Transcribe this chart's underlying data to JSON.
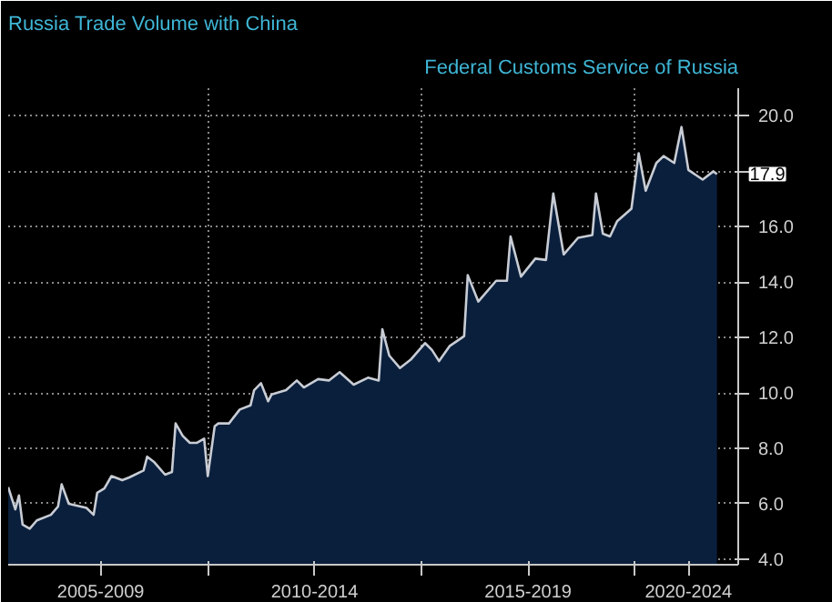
{
  "chart_data": {
    "type": "area",
    "title": "Russia Trade Volume with China",
    "annotations": [
      "Federal Customs Service of Russia",
      {
        "text": "17.9",
        "x": "2021-12",
        "y": 17.9
      }
    ],
    "x": [
      "2005-05",
      "2005-07",
      "2005-08",
      "2005-09",
      "2005-11",
      "2006-01",
      "2006-05",
      "2006-07",
      "2006-08",
      "2006-10",
      "2007-03",
      "2007-05",
      "2007-06",
      "2007-08",
      "2007-10",
      "2008-01",
      "2008-03",
      "2008-07",
      "2008-08",
      "2008-10",
      "2009-01",
      "2009-03",
      "2009-04",
      "2009-06",
      "2009-08",
      "2009-10",
      "2009-12",
      "2010-01",
      "2010-03",
      "2010-04",
      "2010-07",
      "2010-10",
      "2011-01",
      "2011-02",
      "2011-04",
      "2011-06",
      "2011-07",
      "2011-11",
      "2012-02",
      "2012-04",
      "2012-08",
      "2012-11",
      "2013-02",
      "2013-06",
      "2013-10",
      "2014-01",
      "2014-02",
      "2014-04",
      "2014-07",
      "2014-10",
      "2015-02",
      "2015-04",
      "2015-06",
      "2015-09",
      "2016-01",
      "2016-02",
      "2016-05",
      "2016-10",
      "2017-01",
      "2017-02",
      "2017-05",
      "2017-09",
      "2017-12",
      "2018-02",
      "2018-05",
      "2018-09",
      "2019-01",
      "2019-02",
      "2019-04",
      "2019-06",
      "2019-08",
      "2019-12",
      "2020-02",
      "2020-04",
      "2020-07",
      "2020-09",
      "2020-12",
      "2021-02",
      "2021-04",
      "2021-08",
      "2021-11",
      "2021-12"
    ],
    "series": [
      {
        "color": "#c8ccd4",
        "values": [
          6.6,
          5.8,
          6.3,
          5.25,
          5.1,
          5.4,
          5.6,
          5.9,
          6.7,
          6.0,
          5.85,
          5.6,
          6.4,
          6.55,
          7.0,
          6.85,
          6.95,
          7.2,
          7.7,
          7.5,
          7.05,
          7.15,
          8.9,
          8.45,
          8.2,
          8.2,
          8.35,
          7.0,
          8.8,
          8.9,
          8.9,
          9.4,
          9.55,
          10.1,
          10.35,
          9.7,
          9.95,
          10.1,
          10.45,
          10.2,
          10.5,
          10.45,
          10.75,
          10.3,
          10.55,
          10.45,
          12.3,
          11.35,
          10.9,
          11.2,
          11.8,
          11.55,
          11.15,
          11.7,
          12.05,
          14.25,
          13.3,
          14.05,
          14.05,
          15.65,
          14.2,
          14.85,
          14.8,
          17.2,
          15.0,
          15.6,
          15.7,
          17.2,
          15.75,
          15.65,
          16.2,
          16.65,
          18.65,
          17.3,
          18.3,
          18.55,
          18.3,
          19.6,
          18.05,
          17.7,
          18.0,
          17.9
        ]
      }
    ],
    "xlim": [
      "2005-05",
      "2022-06"
    ],
    "xticks": [
      {
        "value": "2007-07",
        "label": "2005-2009"
      },
      {
        "value": "2010-01",
        "label": null
      },
      {
        "value": "2012-07",
        "label": "2010-2014"
      },
      {
        "value": "2015-01",
        "label": null
      },
      {
        "value": "2017-07",
        "label": "2015-2019"
      },
      {
        "value": "2020-01",
        "label": null
      },
      {
        "value": "2021-04",
        "label": "2020-2024"
      }
    ],
    "ylim": [
      3.8,
      21.0
    ],
    "yticks": [
      {
        "value": 4,
        "label": "4.0"
      },
      {
        "value": 6,
        "label": "6.0"
      },
      {
        "value": 8,
        "label": "8.0"
      },
      {
        "value": 10,
        "label": "10.0"
      },
      {
        "value": 12,
        "label": "12.0"
      },
      {
        "value": 14,
        "label": "14.0"
      },
      {
        "value": 16,
        "label": "16.0"
      },
      {
        "value": 18,
        "label": null
      },
      {
        "value": 20,
        "label": "20.0"
      }
    ],
    "grid": true
  }
}
